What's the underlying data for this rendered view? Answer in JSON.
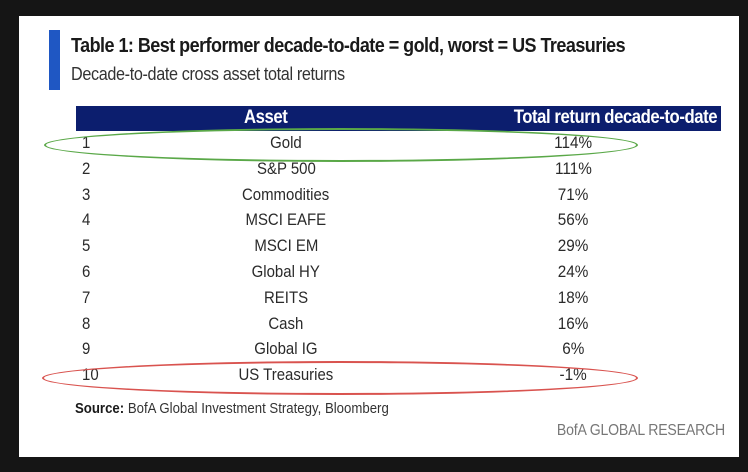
{
  "card": {
    "title": "Table 1: Best performer decade-to-date = gold, worst = US Treasuries",
    "subtitle": "Decade-to-date cross asset total returns",
    "accent_color": "#1f57c3",
    "header_color": "#0c1e6e"
  },
  "table": {
    "columns": [
      "",
      "Asset",
      "Total return decade-to-date"
    ],
    "rows": [
      {
        "rank": "1",
        "asset": "Gold",
        "return": "114%"
      },
      {
        "rank": "2",
        "asset": "S&P 500",
        "return": "111%"
      },
      {
        "rank": "3",
        "asset": "Commodities",
        "return": "71%"
      },
      {
        "rank": "4",
        "asset": "MSCI EAFE",
        "return": "56%"
      },
      {
        "rank": "5",
        "asset": "MSCI EM",
        "return": "29%"
      },
      {
        "rank": "6",
        "asset": "Global HY",
        "return": "24%"
      },
      {
        "rank": "7",
        "asset": "REITS",
        "return": "18%"
      },
      {
        "rank": "8",
        "asset": "Cash",
        "return": "16%"
      },
      {
        "rank": "9",
        "asset": "Global IG",
        "return": "6%"
      },
      {
        "rank": "10",
        "asset": "US Treasuries",
        "return": "-1%"
      }
    ],
    "highlights": [
      {
        "rank": "1",
        "color": "#5aa848",
        "meaning": "best"
      },
      {
        "rank": "10",
        "color": "#d9534f",
        "meaning": "worst"
      }
    ]
  },
  "footer": {
    "source_label": "Source:",
    "source_text": " BofA Global Investment Strategy, Bloomberg",
    "brand": "BofA GLOBAL RESEARCH"
  }
}
